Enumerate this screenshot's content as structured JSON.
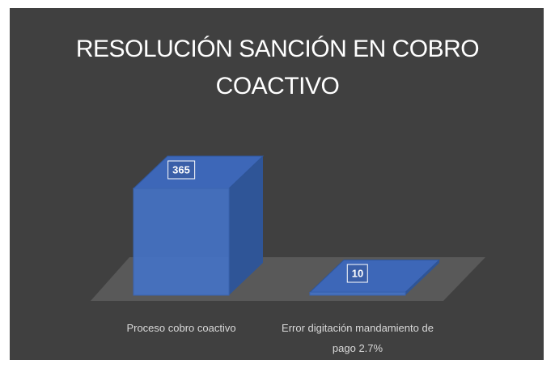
{
  "chart_data": {
    "type": "bar3d",
    "title": "RESOLUCIÓN SANCIÓN EN COBRO COACTIVO",
    "categories": [
      "Proceso cobro coactivo",
      "Error digitación mandamiento de pago 2.7%"
    ],
    "values": [
      365,
      10
    ],
    "color": "#4472c4"
  }
}
